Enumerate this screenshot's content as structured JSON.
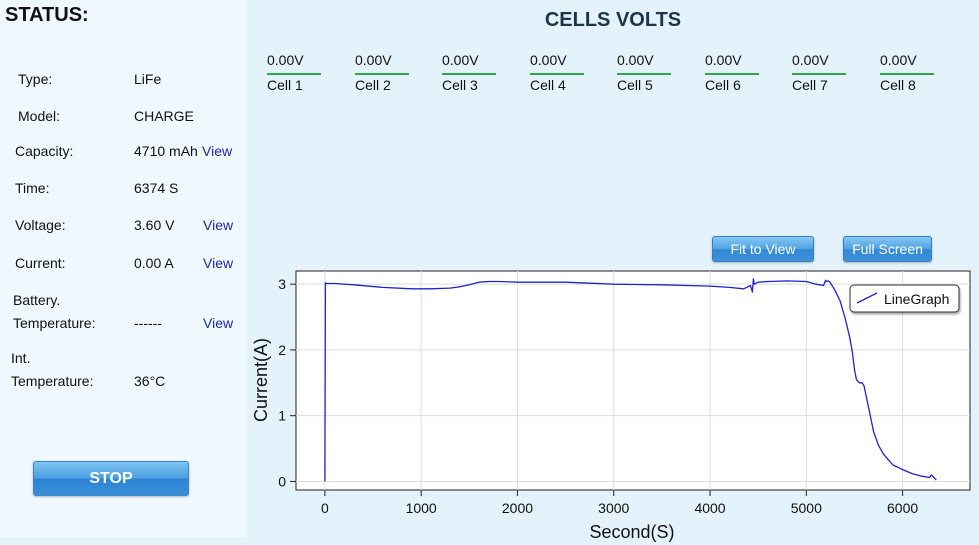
{
  "status": {
    "title": "STATUS:",
    "type": {
      "label": "Type:",
      "value": "LiFe"
    },
    "model": {
      "label": "Model:",
      "value": "CHARGE"
    },
    "capacity": {
      "label": "Capacity:",
      "value": "4710 mAh",
      "link": "View"
    },
    "time": {
      "label": "Time:",
      "value": "6374 S"
    },
    "voltage": {
      "label": "Voltage:",
      "value": "3.60 V",
      "link": "View"
    },
    "current": {
      "label": "Current:",
      "value": "0.00 A",
      "link": "View"
    },
    "battery_temp": {
      "label_line1": "Battery.",
      "label_line2": "Temperature:",
      "value": "------",
      "link": "View"
    },
    "int_temp": {
      "label_line1": "Int.",
      "label_line2": "Temperature:",
      "value": "36°C"
    },
    "stop_label": "STOP"
  },
  "cells": {
    "title": "CELLS VOLTS",
    "items": [
      {
        "value": "0.00V",
        "label": "Cell 1"
      },
      {
        "value": "0.00V",
        "label": "Cell 2"
      },
      {
        "value": "0.00V",
        "label": "Cell 3"
      },
      {
        "value": "0.00V",
        "label": "Cell 4"
      },
      {
        "value": "0.00V",
        "label": "Cell 5"
      },
      {
        "value": "0.00V",
        "label": "Cell 6"
      },
      {
        "value": "0.00V",
        "label": "Cell 7"
      },
      {
        "value": "0.00V",
        "label": "Cell 8"
      }
    ]
  },
  "buttons": {
    "fit_to_view": "Fit to View",
    "full_screen": "Full Screen"
  },
  "colors": {
    "line": "#1f23c8",
    "cell_underline": "#2ea64a",
    "button": "#4fa2e2"
  },
  "chart_data": {
    "type": "line",
    "xlabel": "Second(S)",
    "ylabel": "Current(A)",
    "xlim": [
      -300,
      6700
    ],
    "ylim": [
      -0.13,
      3.2
    ],
    "xticks": [
      0,
      1000,
      2000,
      3000,
      4000,
      5000,
      6000
    ],
    "yticks": [
      0,
      1,
      2,
      3
    ],
    "grid": true,
    "legend_position": "top-right",
    "series": [
      {
        "name": "LineGraph",
        "color": "#1f23c8",
        "x": [
          0,
          5,
          10,
          100,
          300,
          600,
          900,
          1100,
          1300,
          1400,
          1500,
          1600,
          1700,
          1800,
          2000,
          2500,
          3000,
          3500,
          4000,
          4200,
          4350,
          4420,
          4440,
          4450,
          4460,
          4500,
          4600,
          4800,
          5000,
          5100,
          5180,
          5200,
          5210,
          5230,
          5250,
          5300,
          5350,
          5400,
          5450,
          5480,
          5500,
          5520,
          5550,
          5580,
          5600,
          5650,
          5700,
          5750,
          5800,
          5850,
          5900,
          6000,
          6100,
          6200,
          6280,
          6300,
          6350
        ],
        "y": [
          0.0,
          3.02,
          3.01,
          3.01,
          2.99,
          2.95,
          2.93,
          2.93,
          2.94,
          2.96,
          2.99,
          3.03,
          3.04,
          3.04,
          3.03,
          3.03,
          3.0,
          2.99,
          2.97,
          2.95,
          2.93,
          2.98,
          2.88,
          3.08,
          3.0,
          3.03,
          3.04,
          3.05,
          3.04,
          3.0,
          2.98,
          3.06,
          3.04,
          3.05,
          3.02,
          2.9,
          2.75,
          2.5,
          2.2,
          1.95,
          1.7,
          1.55,
          1.5,
          1.5,
          1.45,
          1.1,
          0.75,
          0.55,
          0.42,
          0.33,
          0.25,
          0.18,
          0.12,
          0.08,
          0.06,
          0.1,
          0.02
        ]
      }
    ]
  }
}
